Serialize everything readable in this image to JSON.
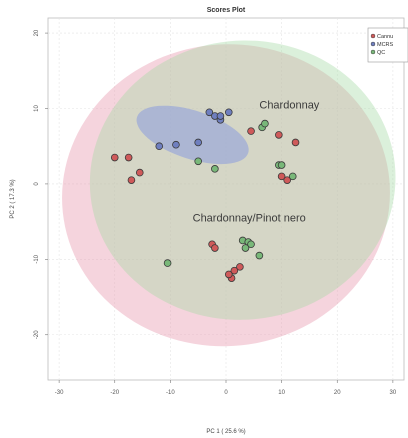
{
  "chart_data": {
    "type": "scatter",
    "title": "Scores Plot",
    "xlabel": "PC 1 ( 25.6 %)",
    "ylabel": "PC 2 ( 17.3 %)",
    "xlim": [
      -32,
      32
    ],
    "ylim": [
      -26,
      22
    ],
    "xticks": [
      -30,
      -20,
      -10,
      0,
      10,
      20,
      30
    ],
    "yticks": [
      20,
      10,
      0,
      -10,
      -20
    ],
    "grid": true,
    "legend_position": "top-right",
    "series": [
      {
        "name": "Cannu",
        "color": "#e8a0a0",
        "marker_fill": "#cf5a5a",
        "x": [
          -17.5,
          -15.5,
          -20,
          -17,
          4.5,
          9.5,
          12.5,
          10,
          11,
          -2.5,
          -2,
          2.5,
          1.5,
          1,
          0.5
        ],
        "y": [
          3.5,
          1.5,
          3.5,
          0.5,
          7,
          6.5,
          5.5,
          1,
          0.5,
          -8,
          -8.5,
          -11,
          -11.5,
          -12.5,
          -12
        ]
      },
      {
        "name": "MCRS",
        "color": "#9aa8d8",
        "marker_fill": "#6f7fbf",
        "x": [
          -12,
          -9,
          -5,
          -3,
          -2,
          -1,
          0.5,
          -1
        ],
        "y": [
          5,
          5.2,
          5.5,
          9.5,
          9,
          8.5,
          9.5,
          9
        ]
      },
      {
        "name": "QC",
        "color": "#9fd69f",
        "marker_fill": "#79b879",
        "x": [
          -5,
          -2,
          6.5,
          7,
          9.5,
          10,
          12,
          3,
          4,
          4.5,
          3.5,
          6,
          -10.5
        ],
        "y": [
          3,
          2,
          7.5,
          8,
          2.5,
          2.5,
          1,
          -7.5,
          -7.7,
          -8,
          -8.5,
          -9.5,
          -10.5
        ]
      }
    ],
    "confidence_ellipses": [
      {
        "group": "Cannu",
        "center": [
          0,
          -1.5
        ],
        "rx": 29.5,
        "ry": 20,
        "rotation_deg": -6,
        "color": "#e8a0b4"
      },
      {
        "group": "QC",
        "center": [
          3,
          0.5
        ],
        "rx": 27.5,
        "ry": 18.5,
        "rotation_deg": -6,
        "color": "#a6d9a6"
      },
      {
        "group": "MCRS",
        "center": [
          -6,
          6.5
        ],
        "rx": 10.5,
        "ry": 3.2,
        "rotation_deg": 18,
        "color": "#9aa8d8"
      }
    ],
    "annotations": [
      {
        "text": "Chardonnay",
        "x": 6,
        "y": 10
      },
      {
        "text": "Chardonnay/Pinot nero",
        "x": -6,
        "y": -5
      }
    ]
  }
}
